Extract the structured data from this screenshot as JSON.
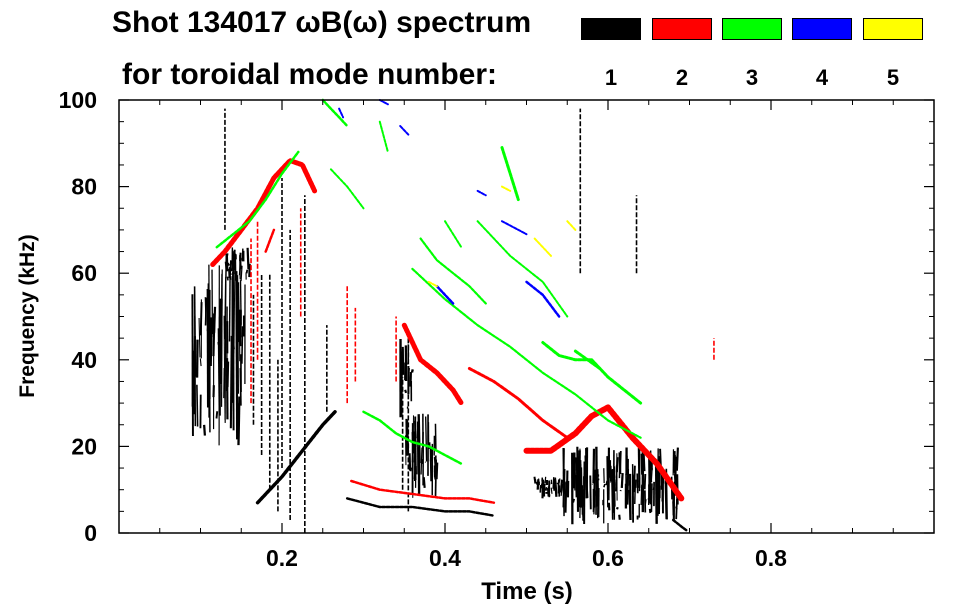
{
  "chart_data": {
    "type": "heatmap",
    "title": "Shot 134017 ωB(ω) spectrum",
    "subtitle": "for toroidal mode number:",
    "xlabel": "Time (s)",
    "ylabel": "Frequency (kHz)",
    "xlim": [
      0.0,
      1.0
    ],
    "ylim": [
      0,
      100
    ],
    "x_ticks": [
      {
        "value": 0.2,
        "label": "0.2"
      },
      {
        "value": 0.4,
        "label": "0.4"
      },
      {
        "value": 0.6,
        "label": "0.6"
      },
      {
        "value": 0.8,
        "label": "0.8"
      }
    ],
    "y_ticks": [
      {
        "value": 0,
        "label": "0"
      },
      {
        "value": 20,
        "label": "20"
      },
      {
        "value": 40,
        "label": "40"
      },
      {
        "value": 60,
        "label": "60"
      },
      {
        "value": 80,
        "label": "80"
      },
      {
        "value": 100,
        "label": "100"
      }
    ],
    "legend": [
      {
        "mode": "1",
        "color": "#000000"
      },
      {
        "mode": "2",
        "color": "#ff0000"
      },
      {
        "mode": "3",
        "color": "#00ff00"
      },
      {
        "mode": "4",
        "color": "#0000ff"
      },
      {
        "mode": "5",
        "color": "#ffff00"
      }
    ],
    "series": [
      {
        "name": "n=1",
        "color": "#000000",
        "blobs": [
          {
            "t0": 0.09,
            "t1": 0.155,
            "f0": 20,
            "f1": 62
          },
          {
            "t0": 0.13,
            "t1": 0.16,
            "f0": 58,
            "f1": 66
          },
          {
            "t0": 0.545,
            "t1": 0.69,
            "f0": 2,
            "f1": 20
          },
          {
            "t0": 0.51,
            "t1": 0.55,
            "f0": 8,
            "f1": 13
          },
          {
            "t0": 0.35,
            "t1": 0.39,
            "f0": 8,
            "f1": 28
          },
          {
            "t0": 0.345,
            "t1": 0.36,
            "f0": 26,
            "f1": 45
          }
        ],
        "tracks": [
          {
            "t": [
              0.17,
              0.2,
              0.225,
              0.25,
              0.265
            ],
            "f": [
              7,
              13,
              19,
              25,
              28
            ],
            "w": 3.5
          },
          {
            "t": [
              0.28,
              0.32,
              0.36,
              0.4,
              0.43,
              0.46
            ],
            "f": [
              8,
              6,
              6,
              5,
              5,
              4
            ],
            "w": 2.5
          },
          {
            "t": [
              0.68,
              0.69,
              0.697
            ],
            "f": [
              3,
              1.5,
              0.5
            ],
            "w": 2.5
          }
        ],
        "lines": [
          {
            "t": 0.228,
            "f0": 0,
            "f1": 78
          },
          {
            "t": 0.21,
            "f0": 3,
            "f1": 70
          },
          {
            "t": 0.2,
            "f0": 15,
            "f1": 82
          },
          {
            "t": 0.185,
            "f0": 10,
            "f1": 60
          },
          {
            "t": 0.195,
            "f0": 5,
            "f1": 40
          },
          {
            "t": 0.165,
            "f0": 25,
            "f1": 55
          },
          {
            "t": 0.175,
            "f0": 18,
            "f1": 60
          },
          {
            "t": 0.355,
            "f0": 5,
            "f1": 45
          },
          {
            "t": 0.348,
            "f0": 10,
            "f1": 36
          },
          {
            "t": 0.13,
            "f0": 70,
            "f1": 98
          },
          {
            "t": 0.635,
            "f0": 60,
            "f1": 78
          },
          {
            "t": 0.566,
            "f0": 60,
            "f1": 98
          },
          {
            "t": 0.255,
            "f0": 28,
            "f1": 48
          }
        ]
      },
      {
        "name": "n=2",
        "color": "#ff0000",
        "tracks": [
          {
            "t": [
              0.115,
              0.13,
              0.15,
              0.17,
              0.19,
              0.21,
              0.225,
              0.24
            ],
            "f": [
              62,
              65,
              70,
              75,
              82,
              86,
              85,
              79
            ],
            "w": 5
          },
          {
            "t": [
              0.35,
              0.37,
              0.39,
              0.41,
              0.42
            ],
            "f": [
              48,
              40,
              37,
              33,
              30
            ],
            "w": 5
          },
          {
            "t": [
              0.43,
              0.46,
              0.49,
              0.52,
              0.55
            ],
            "f": [
              38,
              35,
              31,
              26,
              22
            ],
            "w": 3
          },
          {
            "t": [
              0.5,
              0.53,
              0.56,
              0.58,
              0.6,
              0.63,
              0.66,
              0.69
            ],
            "f": [
              19,
              19,
              23,
              27,
              29,
              22,
              16,
              8
            ],
            "w": 6
          },
          {
            "t": [
              0.285,
              0.32,
              0.36,
              0.4,
              0.43,
              0.46
            ],
            "f": [
              12,
              10,
              9,
              8,
              8,
              7
            ],
            "w": 2.5
          },
          {
            "t": [
              0.18,
              0.19
            ],
            "f": [
              65,
              70
            ],
            "w": 2.5
          }
        ],
        "lines": [
          {
            "t": 0.162,
            "f0": 30,
            "f1": 68
          },
          {
            "t": 0.17,
            "f0": 40,
            "f1": 72
          },
          {
            "t": 0.28,
            "f0": 30,
            "f1": 57
          },
          {
            "t": 0.29,
            "f0": 35,
            "f1": 52
          },
          {
            "t": 0.34,
            "f0": 35,
            "f1": 50
          },
          {
            "t": 0.223,
            "f0": 50,
            "f1": 75
          },
          {
            "t": 0.73,
            "f0": 40,
            "f1": 45
          }
        ]
      },
      {
        "name": "n=3",
        "color": "#00ff00",
        "tracks": [
          {
            "t": [
              0.12,
              0.14,
              0.16,
              0.18,
              0.2,
              0.22
            ],
            "f": [
              66,
              69,
              72,
              77,
              83,
              88
            ],
            "w": 2.5
          },
          {
            "t": [
              0.25,
              0.26,
              0.27,
              0.28
            ],
            "f": [
              100,
              98,
              96,
              94
            ],
            "w": 2.5
          },
          {
            "t": [
              0.3,
              0.32,
              0.34,
              0.36,
              0.38,
              0.4,
              0.42
            ],
            "f": [
              28,
              26,
              23,
              21,
              20,
              18,
              16
            ],
            "w": 2.5
          },
          {
            "t": [
              0.36,
              0.4,
              0.44,
              0.48,
              0.52,
              0.56,
              0.6,
              0.64
            ],
            "f": [
              61,
              54,
              48,
              43,
              37,
              32,
              26,
              22
            ],
            "w": 2.2
          },
          {
            "t": [
              0.37,
              0.39,
              0.41,
              0.43,
              0.45
            ],
            "f": [
              68,
              63,
              60,
              57,
              53
            ],
            "w": 2.2
          },
          {
            "t": [
              0.44,
              0.48,
              0.52,
              0.55
            ],
            "f": [
              72,
              64,
              58,
              50
            ],
            "w": 2
          },
          {
            "t": [
              0.52,
              0.54,
              0.56,
              0.58,
              0.6,
              0.62,
              0.64
            ],
            "f": [
              44,
              41,
              40,
              40,
              36,
              33,
              30
            ],
            "w": 3
          },
          {
            "t": [
              0.47,
              0.48,
              0.49
            ],
            "f": [
              89,
              83,
              77
            ],
            "w": 3
          },
          {
            "t": [
              0.26,
              0.28,
              0.3
            ],
            "f": [
              84,
              80,
              75
            ],
            "w": 2
          },
          {
            "t": [
              0.32,
              0.33
            ],
            "f": [
              95,
              88
            ],
            "w": 2
          },
          {
            "t": [
              0.4,
              0.42
            ],
            "f": [
              72,
              66
            ],
            "w": 2
          },
          {
            "t": [
              0.56,
              0.59
            ],
            "f": [
              42,
              38
            ],
            "w": 3
          }
        ]
      },
      {
        "name": "n=4",
        "color": "#0000ff",
        "tracks": [
          {
            "t": [
              0.27,
              0.275
            ],
            "f": [
              98,
              96
            ],
            "w": 2
          },
          {
            "t": [
              0.39,
              0.4,
              0.41
            ],
            "f": [
              57,
              55,
              53
            ],
            "w": 2.5
          },
          {
            "t": [
              0.47,
              0.5
            ],
            "f": [
              72,
              69
            ],
            "w": 2
          },
          {
            "t": [
              0.5,
              0.52,
              0.54
            ],
            "f": [
              58,
              55,
              50
            ],
            "w": 2.5
          },
          {
            "t": [
              0.44,
              0.45
            ],
            "f": [
              79,
              78
            ],
            "w": 2
          },
          {
            "t": [
              0.345,
              0.355
            ],
            "f": [
              94,
              92
            ],
            "w": 2
          },
          {
            "t": [
              0.32,
              0.33
            ],
            "f": [
              100,
              99
            ],
            "w": 2
          }
        ]
      },
      {
        "name": "n=5",
        "color": "#ffff00",
        "tracks": [
          {
            "t": [
              0.51,
              0.53
            ],
            "f": [
              68,
              64
            ],
            "w": 2
          },
          {
            "t": [
              0.55,
              0.56
            ],
            "f": [
              72,
              70
            ],
            "w": 2
          },
          {
            "t": [
              0.47,
              0.48
            ],
            "f": [
              80,
              79
            ],
            "w": 2
          },
          {
            "t": [
              0.38,
              0.39
            ],
            "f": [
              58,
              57
            ],
            "w": 2
          }
        ]
      }
    ]
  }
}
